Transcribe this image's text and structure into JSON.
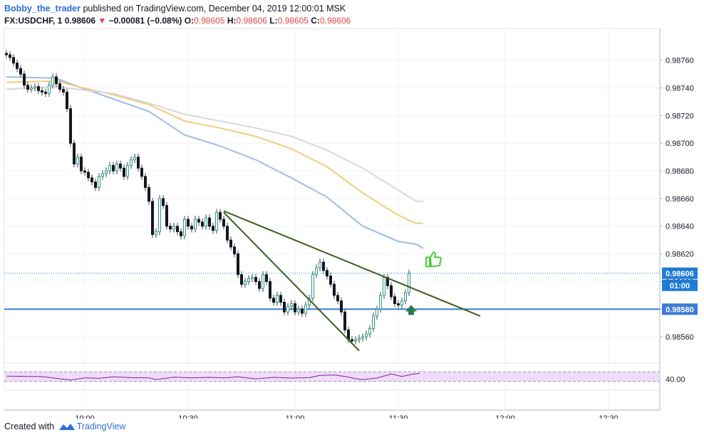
{
  "header": {
    "author": "Bobby_the_trader",
    "published": " published on TradingView.com, December 04, 2019 12:00:01 MSK",
    "symbol": "FX:USDCHF, 1",
    "last": "0.98606",
    "change": "−0.00081 (−0.08%)",
    "o_label": "O:",
    "o_val": "0.98605",
    "h_label": "H:",
    "h_val": "0.98606",
    "l_label": "L:",
    "l_val": "0.98605",
    "c_label": "C:",
    "c_val": "0.98606"
  },
  "footer": {
    "created": "Created with",
    "brand": "TradingView"
  },
  "colors": {
    "bull": "#2c9a8a",
    "bear": "#131722",
    "trend": "#3b5e1f",
    "support": "#3d7ad6",
    "ma_blue": "#9fbce8",
    "ma_yellow": "#f1cc7a",
    "ma_gray": "#d8d8d8",
    "rsi": "#8b1f8d",
    "rsi_band": "#efdcfb",
    "price_tag": "#1d7cd6",
    "arrow": "#2a7a4a",
    "thumb": "#4ccd3a"
  },
  "icons": [
    "green-up-arrow-icon",
    "thumbs-up-icon",
    "tradingview-logo-icon"
  ],
  "chart_data": {
    "type": "candlestick",
    "symbol": "FX:USDCHF",
    "interval": "1",
    "x_ticks": [
      "10:00",
      "10:30",
      "11:00",
      "11:30",
      "12:00",
      "12:30"
    ],
    "y_ticks": [
      "0.98760",
      "0.98740",
      "0.98720",
      "0.98700",
      "0.98680",
      "0.98660",
      "0.98640",
      "0.98620",
      "0.98600",
      "0.98580",
      "0.98560"
    ],
    "ylim": [
      0.98541,
      0.98783
    ],
    "last_price_label": "0.98606",
    "countdown_label": "01:00",
    "support_label": "0.98580",
    "support_level": 0.9858,
    "rsi_label": "40.00",
    "rsi_range": [
      0,
      100
    ],
    "rsi_band": [
      30,
      70
    ],
    "closes": [
      0.98764,
      0.98762,
      0.98758,
      0.98754,
      0.9875,
      0.98742,
      0.98739,
      0.9874,
      0.98741,
      0.98738,
      0.98737,
      0.98736,
      0.98742,
      0.98748,
      0.98743,
      0.98739,
      0.98737,
      0.98725,
      0.987,
      0.98685,
      0.9869,
      0.9868,
      0.98679,
      0.98675,
      0.98672,
      0.98668,
      0.98676,
      0.98678,
      0.9868,
      0.98684,
      0.9868,
      0.98685,
      0.98682,
      0.98676,
      0.98684,
      0.98688,
      0.9869,
      0.98682,
      0.98676,
      0.98668,
      0.98658,
      0.98634,
      0.98636,
      0.9866,
      0.98655,
      0.9864,
      0.98638,
      0.9864,
      0.98636,
      0.98633,
      0.98645,
      0.9864,
      0.98638,
      0.98645,
      0.98643,
      0.9864,
      0.98646,
      0.9864,
      0.98637,
      0.9865,
      0.98645,
      0.9864,
      0.9863,
      0.98625,
      0.9862,
      0.98605,
      0.98598,
      0.986,
      0.98602,
      0.98603,
      0.986,
      0.98595,
      0.98605,
      0.986,
      0.98588,
      0.98585,
      0.9859,
      0.98585,
      0.98578,
      0.98582,
      0.98584,
      0.98578,
      0.9858,
      0.98577,
      0.98583,
      0.98588,
      0.98605,
      0.9861,
      0.98614,
      0.98608,
      0.98604,
      0.98598,
      0.9859,
      0.98586,
      0.98578,
      0.98565,
      0.98558,
      0.98557,
      0.98558,
      0.98559,
      0.9856,
      0.98562,
      0.98566,
      0.98575,
      0.9858,
      0.9859,
      0.98603,
      0.98597,
      0.98589,
      0.98584,
      0.98583,
      0.98586,
      0.98592,
      0.98606
    ],
    "series": [
      {
        "name": "",
        "color": "#9fbce8",
        "points": [
          [
            0,
            0.98748
          ],
          [
            14,
            0.98747
          ],
          [
            20,
            0.98741
          ],
          [
            30,
            0.98732
          ],
          [
            40,
            0.98723
          ],
          [
            50,
            0.98706
          ],
          [
            60,
            0.98698
          ],
          [
            70,
            0.98688
          ],
          [
            80,
            0.98675
          ],
          [
            90,
            0.98661
          ],
          [
            100,
            0.9864
          ],
          [
            110,
            0.98629
          ],
          [
            115,
            0.98627
          ],
          [
            117,
            0.98624
          ]
        ]
      },
      {
        "name": "",
        "color": "#f1cc7a",
        "points": [
          [
            0,
            0.98744
          ],
          [
            14,
            0.98745
          ],
          [
            20,
            0.98741
          ],
          [
            30,
            0.98735
          ],
          [
            40,
            0.98728
          ],
          [
            50,
            0.98716
          ],
          [
            60,
            0.98711
          ],
          [
            70,
            0.98705
          ],
          [
            80,
            0.98696
          ],
          [
            90,
            0.98683
          ],
          [
            100,
            0.98664
          ],
          [
            110,
            0.98648
          ],
          [
            115,
            0.98642
          ],
          [
            117,
            0.98642
          ]
        ]
      },
      {
        "name": "",
        "color": "#d8d8d8",
        "points": [
          [
            0,
            0.98739
          ],
          [
            14,
            0.98741
          ],
          [
            20,
            0.98739
          ],
          [
            30,
            0.98736
          ],
          [
            40,
            0.98729
          ],
          [
            50,
            0.98721
          ],
          [
            60,
            0.98716
          ],
          [
            70,
            0.98711
          ],
          [
            80,
            0.98705
          ],
          [
            90,
            0.98695
          ],
          [
            100,
            0.98682
          ],
          [
            110,
            0.98666
          ],
          [
            115,
            0.98658
          ],
          [
            117,
            0.98658
          ]
        ]
      }
    ],
    "trendlines": [
      {
        "from": [
          61,
          0.98651
        ],
        "to": [
          133,
          0.98575
        ]
      },
      {
        "from": [
          61,
          0.9865
        ],
        "to": [
          99,
          0.9855
        ]
      }
    ],
    "rsi": [
      [
        0,
        52
      ],
      [
        10,
        50
      ],
      [
        18,
        36
      ],
      [
        22,
        45
      ],
      [
        26,
        43
      ],
      [
        30,
        49
      ],
      [
        35,
        46
      ],
      [
        40,
        45
      ],
      [
        42,
        38
      ],
      [
        47,
        48
      ],
      [
        52,
        45
      ],
      [
        57,
        47
      ],
      [
        61,
        45
      ],
      [
        65,
        49
      ],
      [
        70,
        41
      ],
      [
        75,
        47
      ],
      [
        80,
        44
      ],
      [
        85,
        46
      ],
      [
        88,
        55
      ],
      [
        92,
        57
      ],
      [
        95,
        51
      ],
      [
        98,
        42
      ],
      [
        100,
        38
      ],
      [
        104,
        44
      ],
      [
        108,
        61
      ],
      [
        111,
        51
      ],
      [
        114,
        60
      ],
      [
        116,
        64
      ]
    ]
  }
}
